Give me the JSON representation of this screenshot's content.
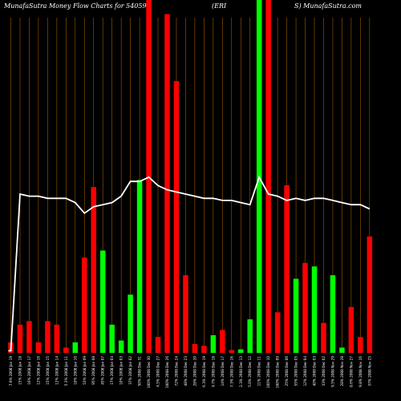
{
  "header": {
    "left": "MunafaSutra  Money Flow  Charts for 540596",
    "middle": "(ERI",
    "right": "S) MunafaSutra.com"
  },
  "chart_data": {
    "type": "bar",
    "title": "MunafaSutra  Money Flow  Charts for 540596 (ERIS) MunafaSutra.com",
    "xlabel": "",
    "ylabel": "",
    "ylim": [
      0,
      100
    ],
    "colors": {
      "up": "#00ff00",
      "down": "#ff0000",
      "line": "#ffffff",
      "grid": "#a05a00",
      "background": "#000000"
    },
    "categories": [
      "7.9% 2008 Jan 19",
      "15% 2008 Jan 18",
      "16% 2008 Jan 17",
      "12% 2008 Jan 16",
      "15% 2008 Jan 15",
      "12% 2008 Jan 14",
      "5.3% 2008 Jan 11",
      "10% 2008 Jan 10",
      "53% 2008 Jan 09",
      "95% 2008 Jan 08",
      "45% 2008 Jan 07",
      "17% 2008 Jan 04",
      "10% 2008 Jan 03",
      "37% 2008 Jan 02",
      "50% 2008 Dec 31",
      "100% 2008 Dec 30",
      "4.5% 2008 Dec 27",
      "100% 2008 Dec 26",
      "72% 2008 Dec 24",
      "48% 2008 Dec 23",
      "28% 2008 Dec 20",
      "6.3% 2008 Dec 19",
      "4.7% 2008 Dec 18",
      "14% 2008 Dec 17",
      "7.3% 2008 Dec 16",
      "2.3% 2008 Dec 13",
      "5.0% 2008 Dec 12",
      "11% 2008 Dec 11",
      "100% 2008 Dec 10",
      "100% 2008 Dec 09",
      "25% 2008 Dec 06",
      "55% 2008 Dec 05",
      "12% 2008 Dec 04",
      "40% 2008 Dec 03",
      "33% 2008 Dec 02",
      "9.5% 2008 Nov 29",
      "28% 2008 Nov 28",
      "8.6% 2008 Nov 27",
      "9.8% 2008 Nov 26",
      "37% 2008 Nov 25"
    ],
    "values": [
      3,
      8,
      9,
      3,
      9,
      8,
      1.5,
      3,
      27,
      47,
      29,
      8,
      3.5,
      16.5,
      49,
      100,
      4.5,
      96,
      77,
      22,
      2.5,
      2,
      5,
      6.5,
      0.8,
      1,
      9.5,
      100,
      100,
      11.5,
      47.5,
      21,
      25.5,
      24.5,
      8.5,
      22,
      1.5,
      13,
      4.5,
      33
    ],
    "direction": [
      "down",
      "down",
      "down",
      "down",
      "down",
      "down",
      "down",
      "up",
      "down",
      "down",
      "up",
      "up",
      "up",
      "up",
      "up",
      "down",
      "down",
      "down",
      "down",
      "down",
      "down",
      "down",
      "up",
      "down",
      "down",
      "up",
      "up",
      "up",
      "down",
      "down",
      "down",
      "up",
      "down",
      "up",
      "down",
      "up",
      "up",
      "down",
      "down",
      "down"
    ],
    "line": {
      "name": "",
      "values": [
        1,
        75,
        74,
        74,
        73,
        73,
        73,
        71,
        66,
        69,
        70,
        71,
        74,
        81,
        81,
        83,
        79,
        77,
        76,
        75,
        74,
        73,
        73,
        72,
        72,
        71,
        70,
        83,
        75,
        74,
        72,
        73,
        72,
        73,
        73,
        72,
        71,
        70,
        70,
        68
      ]
    },
    "grid": true,
    "legend": "none"
  }
}
